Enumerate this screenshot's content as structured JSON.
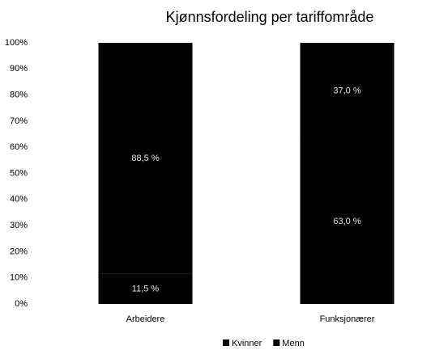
{
  "chart_data": {
    "type": "stacked_bar",
    "title": "Kjønnsfordeling per tariffområde",
    "categories": [
      "Arbeidere",
      "Funksjonærer"
    ],
    "series": [
      {
        "name": "Kvinner",
        "color": "#000000",
        "values": [
          11.5,
          63.0
        ],
        "value_labels": [
          "11,5 %",
          "63,0 %"
        ]
      },
      {
        "name": "Menn",
        "color": "#000000",
        "values": [
          88.5,
          37.0
        ],
        "value_labels": [
          "88,5 %",
          "37,0 %"
        ]
      }
    ],
    "ylim": [
      0,
      100
    ],
    "yticks": [
      {
        "value": 0,
        "label": "0%"
      },
      {
        "value": 10,
        "label": "10%"
      },
      {
        "value": 20,
        "label": "20%"
      },
      {
        "value": 30,
        "label": "30%"
      },
      {
        "value": 40,
        "label": "40%"
      },
      {
        "value": 50,
        "label": "50%"
      },
      {
        "value": 60,
        "label": "60%"
      },
      {
        "value": 70,
        "label": "70%"
      },
      {
        "value": 80,
        "label": "80%"
      },
      {
        "value": 90,
        "label": "90%"
      },
      {
        "value": 100,
        "label": "100%"
      }
    ],
    "legend": "bottom"
  }
}
